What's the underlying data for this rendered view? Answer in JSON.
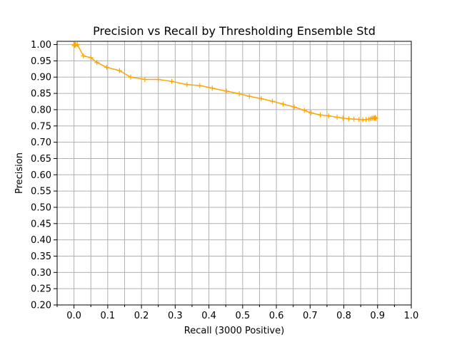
{
  "chart_data": {
    "type": "line",
    "title": "Precision vs Recall by Thresholding Ensemble Std",
    "xlabel": "Recall (3000 Positive)",
    "ylabel": "Precision",
    "xlim": [
      -0.05,
      1.0
    ],
    "ylim": [
      0.2,
      1.01
    ],
    "xticks": [
      0.0,
      0.1,
      0.2,
      0.3,
      0.4,
      0.5,
      0.6,
      0.7,
      0.8,
      0.9,
      1.0
    ],
    "xtick_labels": [
      "0.0",
      "0.1",
      "0.2",
      "0.3",
      "0.4",
      "0.5",
      "0.6",
      "0.7",
      "0.8",
      "0.9",
      "1.0"
    ],
    "xminor": [
      -0.05,
      0.05,
      0.15,
      0.25,
      0.35,
      0.45,
      0.55,
      0.65,
      0.75,
      0.85,
      0.95
    ],
    "yticks": [
      0.2,
      0.25,
      0.3,
      0.35,
      0.4,
      0.45,
      0.5,
      0.55,
      0.6,
      0.65,
      0.7,
      0.75,
      0.8,
      0.85,
      0.9,
      0.95,
      1.0
    ],
    "ytick_labels": [
      "0.20",
      "0.25",
      "0.30",
      "0.35",
      "0.40",
      "0.45",
      "0.50",
      "0.55",
      "0.60",
      "0.65",
      "0.70",
      "0.75",
      "0.80",
      "0.85",
      "0.90",
      "0.95",
      "1.00"
    ],
    "grid": true,
    "series": [
      {
        "color": "#ffa500",
        "marker": "plus",
        "x": [
          0.0,
          0.001,
          0.002,
          0.003,
          0.005,
          0.01,
          0.028,
          0.05,
          0.068,
          0.097,
          0.135,
          0.168,
          0.21,
          0.25,
          0.29,
          0.335,
          0.373,
          0.41,
          0.452,
          0.49,
          0.52,
          0.555,
          0.588,
          0.62,
          0.653,
          0.683,
          0.703,
          0.73,
          0.755,
          0.78,
          0.797,
          0.815,
          0.83,
          0.845,
          0.856,
          0.866,
          0.874,
          0.88,
          0.884,
          0.888,
          0.891,
          0.893,
          0.895
        ],
        "y": [
          1.0,
          0.997,
          1.0,
          0.998,
          1.0,
          1.0,
          0.965,
          0.96,
          0.945,
          0.93,
          0.92,
          0.9,
          0.893,
          0.893,
          0.887,
          0.877,
          0.874,
          0.866,
          0.857,
          0.849,
          0.841,
          0.834,
          0.826,
          0.817,
          0.808,
          0.798,
          0.79,
          0.784,
          0.781,
          0.777,
          0.774,
          0.772,
          0.771,
          0.77,
          0.769,
          0.77,
          0.771,
          0.772,
          0.774,
          0.775,
          0.774,
          0.776,
          0.773
        ]
      }
    ]
  }
}
